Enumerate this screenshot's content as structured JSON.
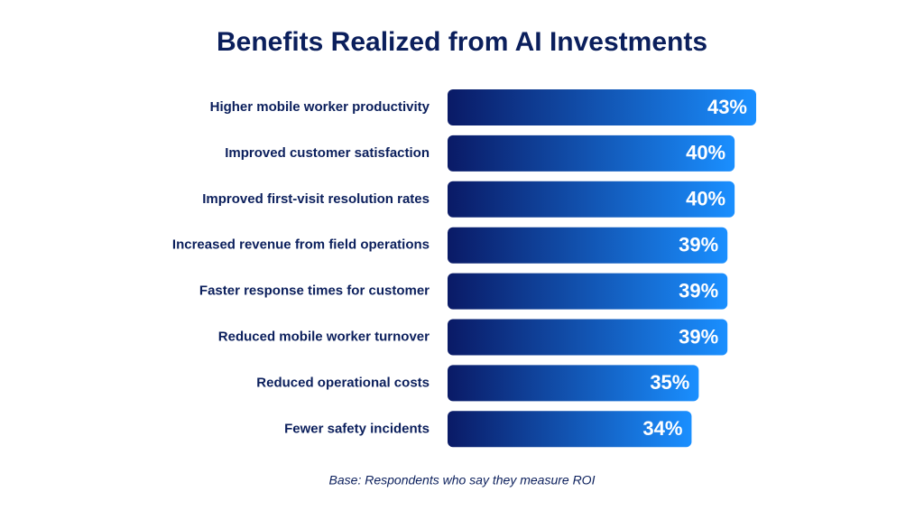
{
  "chart_data": {
    "type": "hbar",
    "title": "Benefits Realized from AI Investments",
    "categories": [
      "Higher mobile worker productivity",
      "Improved customer satisfaction",
      "Improved first-visit resolution rates",
      "Increased revenue from field operations",
      "Faster response times for customer",
      "Reduced mobile worker turnover",
      "Reduced operational costs",
      "Fewer safety incidents"
    ],
    "values": [
      43,
      40,
      40,
      39,
      39,
      39,
      35,
      34
    ],
    "value_labels": [
      "43%",
      "40%",
      "40%",
      "39%",
      "39%",
      "39%",
      "35%",
      "34%"
    ],
    "color_gradient": [
      "#0a1a66",
      "#1a8fff"
    ],
    "footnote": "Base: Respondents who say they measure ROI"
  }
}
